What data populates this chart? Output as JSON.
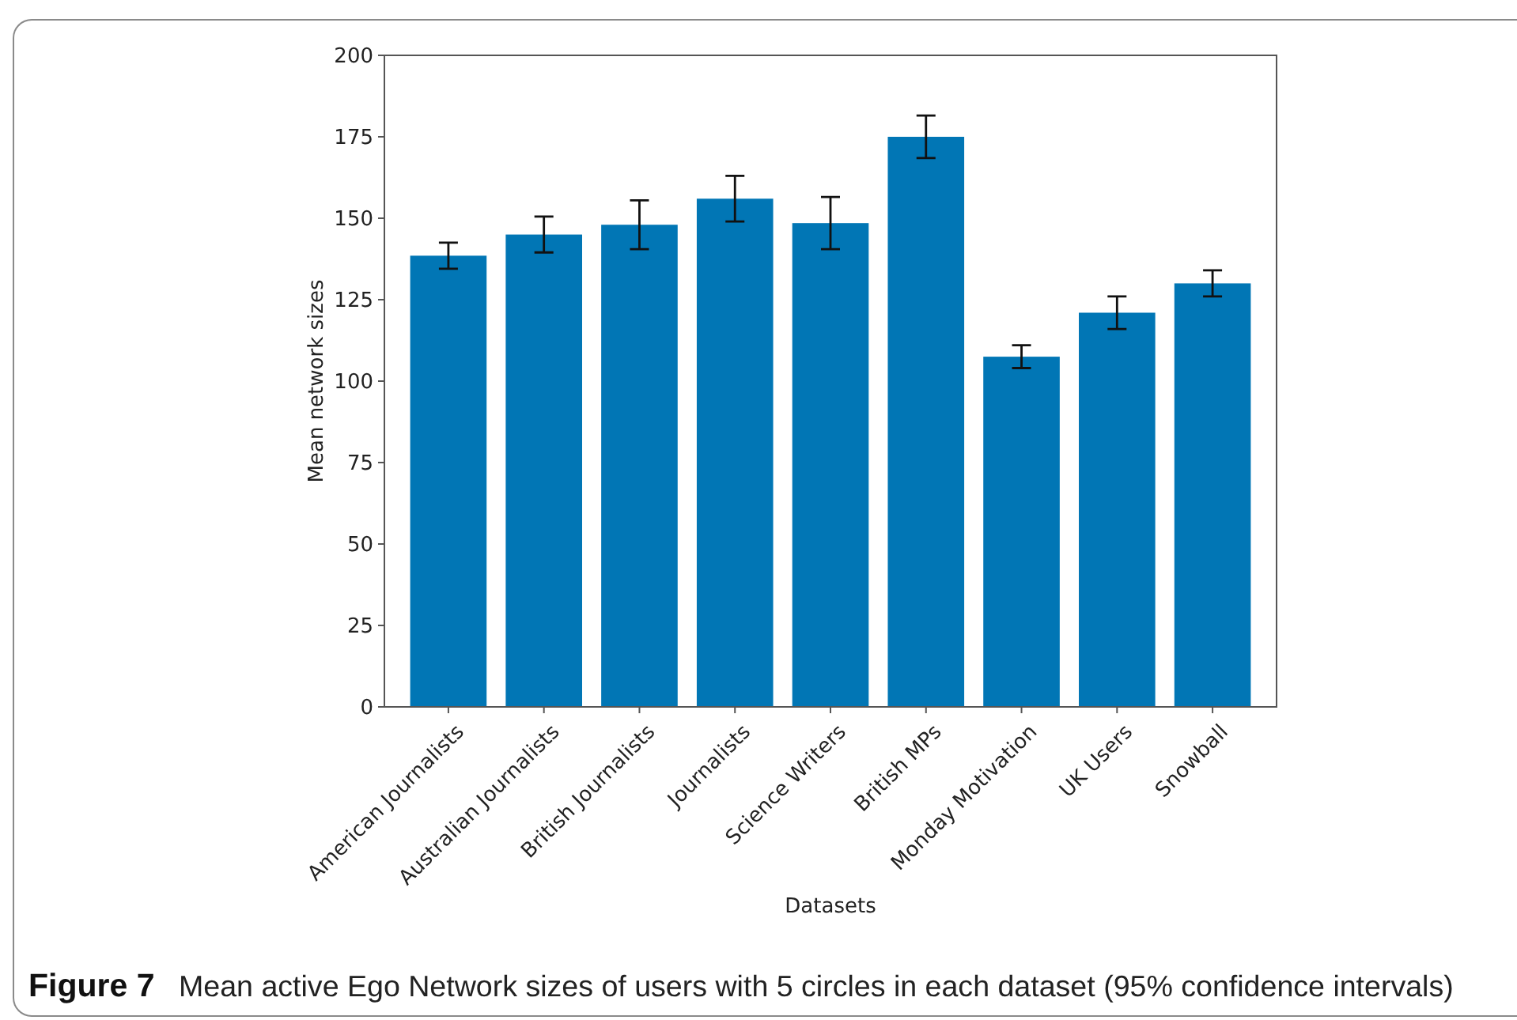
{
  "chart_data": {
    "type": "bar",
    "title": "Mean active Ego Network sizes of users with 5 circles in each dataset (95% confidence intervals)",
    "annotations": [
      "Figure 7"
    ],
    "xlabel": "Datasets",
    "ylabel": "Mean network sizes",
    "categories": [
      "American Journalists",
      "Australian Journalists",
      "British Journalists",
      "Journalists",
      "Science Writers",
      "British MPs",
      "Monday Motivation",
      "UK Users",
      "Snowball"
    ],
    "values": [
      138.5,
      145,
      148,
      156,
      148.5,
      175,
      107.5,
      121,
      130
    ],
    "errors": [
      4,
      5.5,
      7.5,
      7,
      8,
      6.5,
      3.5,
      5,
      4
    ],
    "color": "#0176b5",
    "ylim": [
      0,
      200
    ],
    "yticks": [
      0,
      25,
      50,
      75,
      100,
      125,
      150,
      175,
      200
    ]
  }
}
